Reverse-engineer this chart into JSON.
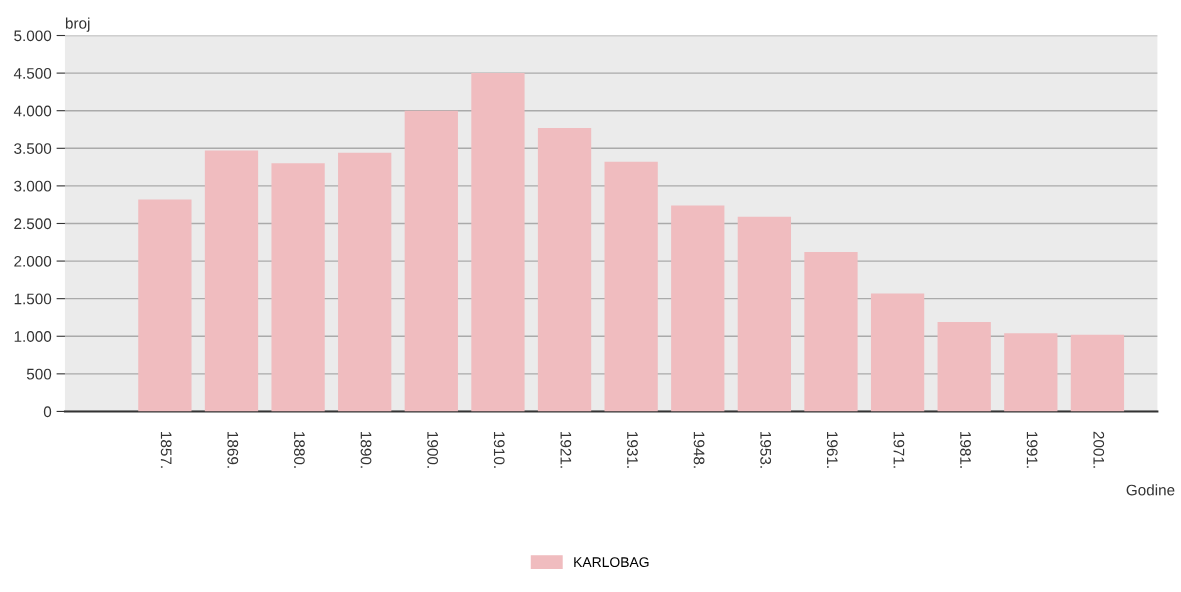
{
  "chart_data": {
    "type": "bar",
    "xlabel": "Godine",
    "ylabel": "broj",
    "categories": [
      "1857.",
      "1869.",
      "1880.",
      "1890.",
      "1900.",
      "1910.",
      "1921.",
      "1931.",
      "1948.",
      "1953.",
      "1961.",
      "1971.",
      "1981.",
      "1991.",
      "2001."
    ],
    "series": [
      {
        "name": "KARLOBAG",
        "color": "#f0bcbf",
        "values": [
          2820,
          3470,
          3300,
          3440,
          4000,
          4500,
          3770,
          3320,
          2740,
          2590,
          2120,
          1570,
          1190,
          1040,
          1020
        ]
      }
    ],
    "ylim": [
      0,
      5000
    ],
    "yticks": [
      {
        "value": 0,
        "label": "0"
      },
      {
        "value": 500,
        "label": "500"
      },
      {
        "value": 1000,
        "label": "1.000"
      },
      {
        "value": 1500,
        "label": "1.500"
      },
      {
        "value": 2000,
        "label": "2.000"
      },
      {
        "value": 2500,
        "label": "2.500"
      },
      {
        "value": 3000,
        "label": "3.000"
      },
      {
        "value": 3500,
        "label": "3.500"
      },
      {
        "value": 4000,
        "label": "4.000"
      },
      {
        "value": 4500,
        "label": "4.500"
      },
      {
        "value": 5000,
        "label": "5.000"
      }
    ],
    "grid": "y",
    "legend": "bottom"
  }
}
